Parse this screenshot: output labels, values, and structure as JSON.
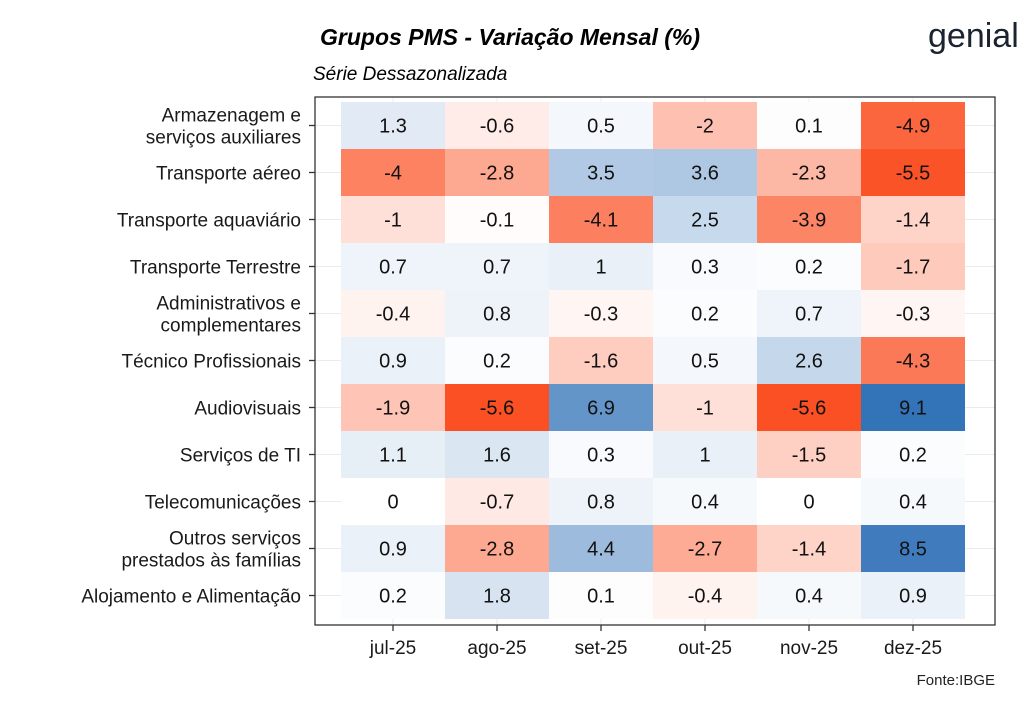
{
  "chart_data": {
    "type": "heatmap",
    "title": "Grupos PMS - Variação Mensal (%)",
    "subtitle": "Série Dessazonalizada",
    "source": "Fonte:IBGE",
    "brand": "genial",
    "columns": [
      "jul-25",
      "ago-25",
      "set-25",
      "out-25",
      "nov-25",
      "dez-25"
    ],
    "rows": [
      {
        "label_lines": [
          "Armazenagem e",
          "serviços auxiliares"
        ],
        "values": [
          1.3,
          -0.6,
          0.5,
          -2,
          0.1,
          -4.9
        ],
        "labels": [
          "1.3",
          "-0.6",
          "0.5",
          "-2",
          "0.1",
          "-4.9"
        ]
      },
      {
        "label_lines": [
          "Transporte aéreo"
        ],
        "values": [
          -4,
          -2.8,
          3.5,
          3.6,
          -2.3,
          -5.5
        ],
        "labels": [
          "-4",
          "-2.8",
          "3.5",
          "3.6",
          "-2.3",
          "-5.5"
        ]
      },
      {
        "label_lines": [
          "Transporte aquaviário"
        ],
        "values": [
          -1,
          -0.1,
          -4.1,
          2.5,
          -3.9,
          -1.4
        ],
        "labels": [
          "-1",
          "-0.1",
          "-4.1",
          "2.5",
          "-3.9",
          "-1.4"
        ]
      },
      {
        "label_lines": [
          "Transporte Terrestre"
        ],
        "values": [
          0.7,
          0.7,
          1,
          0.3,
          0.2,
          -1.7
        ],
        "labels": [
          "0.7",
          "0.7",
          "1",
          "0.3",
          "0.2",
          "-1.7"
        ]
      },
      {
        "label_lines": [
          "Administrativos e",
          "complementares"
        ],
        "values": [
          -0.4,
          0.8,
          -0.3,
          0.2,
          0.7,
          -0.3
        ],
        "labels": [
          "-0.4",
          "0.8",
          "-0.3",
          "0.2",
          "0.7",
          "-0.3"
        ]
      },
      {
        "label_lines": [
          "Técnico Profissionais"
        ],
        "values": [
          0.9,
          0.2,
          -1.6,
          0.5,
          2.6,
          -4.3
        ],
        "labels": [
          "0.9",
          "0.2",
          "-1.6",
          "0.5",
          "2.6",
          "-4.3"
        ]
      },
      {
        "label_lines": [
          "Audiovisuais"
        ],
        "values": [
          -1.9,
          -5.6,
          6.9,
          -1,
          -5.6,
          9.1
        ],
        "labels": [
          "-1.9",
          "-5.6",
          "6.9",
          "-1",
          "-5.6",
          "9.1"
        ]
      },
      {
        "label_lines": [
          "Serviços de TI"
        ],
        "values": [
          1.1,
          1.6,
          0.3,
          1,
          -1.5,
          0.2
        ],
        "labels": [
          "1.1",
          "1.6",
          "0.3",
          "1",
          "-1.5",
          "0.2"
        ]
      },
      {
        "label_lines": [
          "Telecomunicações"
        ],
        "values": [
          0,
          -0.7,
          0.8,
          0.4,
          0,
          0.4
        ],
        "labels": [
          "0",
          "-0.7",
          "0.8",
          "0.4",
          "0",
          "0.4"
        ]
      },
      {
        "label_lines": [
          "Outros serviços",
          "prestados às famílias"
        ],
        "values": [
          0.9,
          -2.8,
          4.4,
          -2.7,
          -1.4,
          8.5
        ],
        "labels": [
          "0.9",
          "-2.8",
          "4.4",
          "-2.7",
          "-1.4",
          "8.5"
        ]
      },
      {
        "label_lines": [
          "Alojamento e Alimentação"
        ],
        "values": [
          0.2,
          1.8,
          0.1,
          -0.4,
          0.4,
          0.9
        ],
        "labels": [
          "0.2",
          "1.8",
          "0.1",
          "-0.4",
          "0.4",
          "0.9"
        ]
      }
    ],
    "color_scale": {
      "negative": "#fb4a1c",
      "neutral": "#ffffff",
      "positive": "#2a6db5",
      "neg_limit": -5.8,
      "pos_limit": 9.5
    }
  }
}
